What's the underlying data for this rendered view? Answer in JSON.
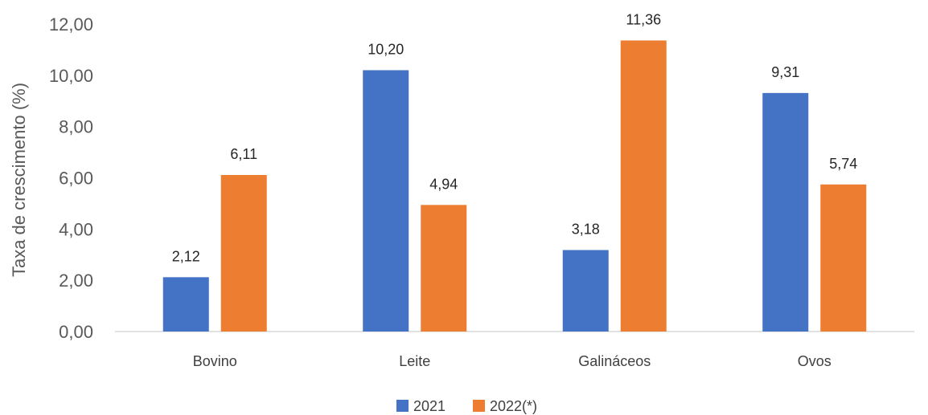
{
  "chart_data": {
    "type": "bar",
    "ylabel": "Taxa de crescimento (%)",
    "xlabel": "",
    "categories": [
      "Bovino",
      "Leite",
      "Galináceos",
      "Ovos"
    ],
    "series": [
      {
        "name": "2021",
        "values": [
          2.12,
          10.2,
          3.18,
          9.31
        ],
        "labels": [
          "2,12",
          "10,20",
          "3,18",
          "9,31"
        ],
        "color": "#4472C4"
      },
      {
        "name": "2022(*)",
        "values": [
          6.11,
          4.94,
          11.36,
          5.74
        ],
        "labels": [
          "6,11",
          "4,94",
          "11,36",
          "5,74"
        ],
        "color": "#ED7D31"
      }
    ],
    "ylim": [
      0,
      12
    ],
    "yticks": [
      0,
      2,
      4,
      6,
      8,
      10,
      12
    ],
    "ytick_labels": [
      "0,00",
      "2,00",
      "4,00",
      "6,00",
      "8,00",
      "10,00",
      "12,00"
    ],
    "grid": false,
    "legend_position": "bottom"
  }
}
